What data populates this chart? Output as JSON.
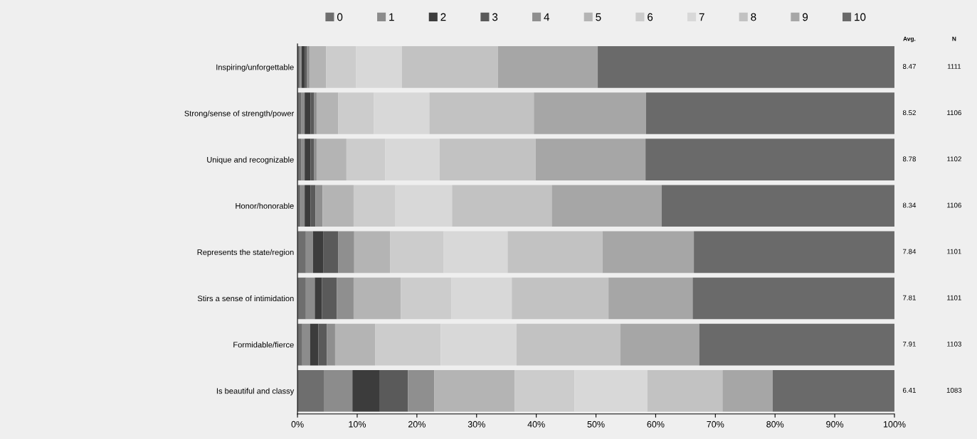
{
  "chart_data": {
    "type": "bar",
    "orientation": "horizontal",
    "stacked": true,
    "categories": [
      "Inspiring/unforgettable",
      "Strong/sense of strength/power",
      "Unique and recognizable",
      "Honor/honorable",
      "Represents the state/region",
      "Stirs a sense of intimidation",
      "Formidable/fierce",
      "Is beautiful and classy"
    ],
    "series": [
      {
        "name": "0",
        "color": "#6e6e6e",
        "values": [
          0.4,
          0.6,
          0.6,
          0.5,
          1.4,
          1.4,
          0.8,
          4.4
        ]
      },
      {
        "name": "1",
        "color": "#8c8c8c",
        "values": [
          0.3,
          0.6,
          0.6,
          0.7,
          1.2,
          1.5,
          1.3,
          4.8
        ]
      },
      {
        "name": "2",
        "color": "#3c3c3c",
        "values": [
          0.5,
          1.0,
          1.0,
          1.0,
          1.7,
          1.2,
          1.4,
          4.6
        ]
      },
      {
        "name": "3",
        "color": "#5a5a5a",
        "values": [
          0.4,
          0.6,
          0.6,
          0.8,
          2.5,
          2.5,
          1.4,
          4.7
        ]
      },
      {
        "name": "4",
        "color": "#8f8f8f",
        "values": [
          0.4,
          0.4,
          0.4,
          1.2,
          2.7,
          2.8,
          1.4,
          4.4
        ]
      },
      {
        "name": "5",
        "color": "#b4b4b4",
        "values": [
          2.8,
          3.6,
          5.0,
          5.2,
          6.0,
          7.9,
          6.7,
          13.5
        ]
      },
      {
        "name": "6",
        "color": "#cccccc",
        "values": [
          5.0,
          6.0,
          6.5,
          7.0,
          9.0,
          8.5,
          11.0,
          10.0
        ]
      },
      {
        "name": "7",
        "color": "#d8d8d8",
        "values": [
          7.7,
          9.3,
          9.1,
          9.5,
          10.7,
          10.1,
          12.7,
          12.2
        ]
      },
      {
        "name": "8",
        "color": "#c2c2c2",
        "values": [
          16.1,
          17.5,
          16.1,
          16.7,
          15.9,
          16.2,
          17.4,
          12.6
        ]
      },
      {
        "name": "9",
        "color": "#a6a6a6",
        "values": [
          16.7,
          18.8,
          18.4,
          18.4,
          15.3,
          14.1,
          13.2,
          8.4
        ]
      },
      {
        "name": "10",
        "color": "#6a6a6a",
        "values": [
          49.7,
          41.6,
          41.7,
          39.0,
          33.6,
          33.8,
          32.7,
          20.4
        ]
      }
    ],
    "xlim": [
      0,
      100
    ],
    "xticks": [
      {
        "value": 0,
        "label": "0%"
      },
      {
        "value": 10,
        "label": "10%"
      },
      {
        "value": 20,
        "label": "20%"
      },
      {
        "value": 30,
        "label": "30%"
      },
      {
        "value": 40,
        "label": "40%"
      },
      {
        "value": 50,
        "label": "50%"
      },
      {
        "value": 60,
        "label": "60%"
      },
      {
        "value": 70,
        "label": "70%"
      },
      {
        "value": 80,
        "label": "80%"
      },
      {
        "value": 90,
        "label": "90%"
      },
      {
        "value": 100,
        "label": "100%"
      }
    ],
    "legend": "top",
    "grid": false,
    "annotations": [
      "Avg.",
      "N",
      "8.47",
      "1111",
      "8.52",
      "1106",
      "8.78",
      "1102",
      "8.34",
      "1106",
      "7.84",
      "1101",
      "7.81",
      "1101",
      "7.91",
      "1103",
      "6.41",
      "1083"
    ]
  }
}
